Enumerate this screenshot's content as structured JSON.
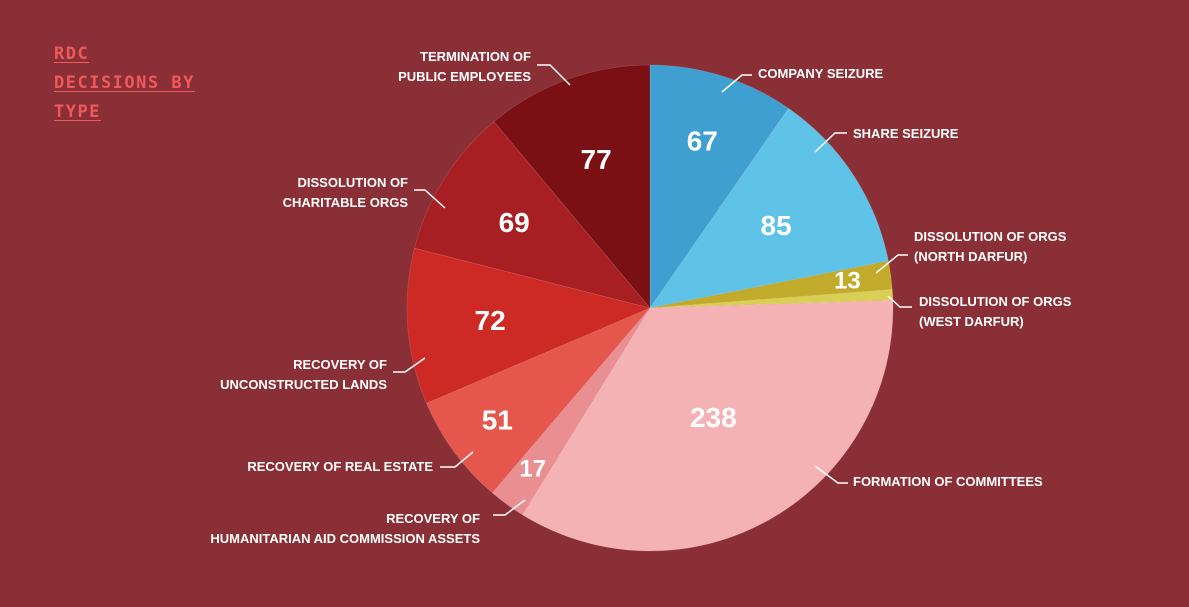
{
  "title_lines": [
    "RDC",
    "DECISIONS BY",
    "TYPE"
  ],
  "chart_data": {
    "type": "pie",
    "title": "RDC DECISIONS BY TYPE",
    "slices": [
      {
        "label": [
          "COMPANY SEIZURE"
        ],
        "value": 67,
        "value_label": "67",
        "color": "#3f9fd1"
      },
      {
        "label": [
          "SHARE SEIZURE"
        ],
        "value": 85,
        "value_label": "85",
        "color": "#5ec3e6"
      },
      {
        "label": [
          "DISSOLUTION OF ORGS",
          "(NORTH DARFUR)"
        ],
        "value": 13,
        "value_label": "13",
        "color": "#c2aa2a"
      },
      {
        "label": [
          "DISSOLUTION OF ORGS",
          "(WEST DARFUR)"
        ],
        "value": 5,
        "value_label": "",
        "color": "#d9cf55"
      },
      {
        "label": [
          "FORMATION OF COMMITTEES"
        ],
        "value": 238,
        "value_label": "238",
        "color": "#f5b2b5"
      },
      {
        "label": [
          "RECOVERY OF",
          "HUMANITARIAN AID COMMISSION ASSETS"
        ],
        "value": 17,
        "value_label": "17",
        "color": "#e98f92"
      },
      {
        "label": [
          "RECOVERY OF REAL ESTATE"
        ],
        "value": 51,
        "value_label": "51",
        "color": "#e5574d"
      },
      {
        "label": [
          "RECOVERY OF",
          "UNCONSTRUCTED LANDS"
        ],
        "value": 72,
        "value_label": "72",
        "color": "#cd2a26"
      },
      {
        "label": [
          "DISSOLUTION OF",
          "CHARITABLE ORGS"
        ],
        "value": 69,
        "value_label": "69",
        "color": "#a71f22"
      },
      {
        "label": [
          "TERMINATION OF",
          "PUBLIC EMPLOYEES"
        ],
        "value": 77,
        "value_label": "77",
        "color": "#7a0f14"
      }
    ]
  }
}
